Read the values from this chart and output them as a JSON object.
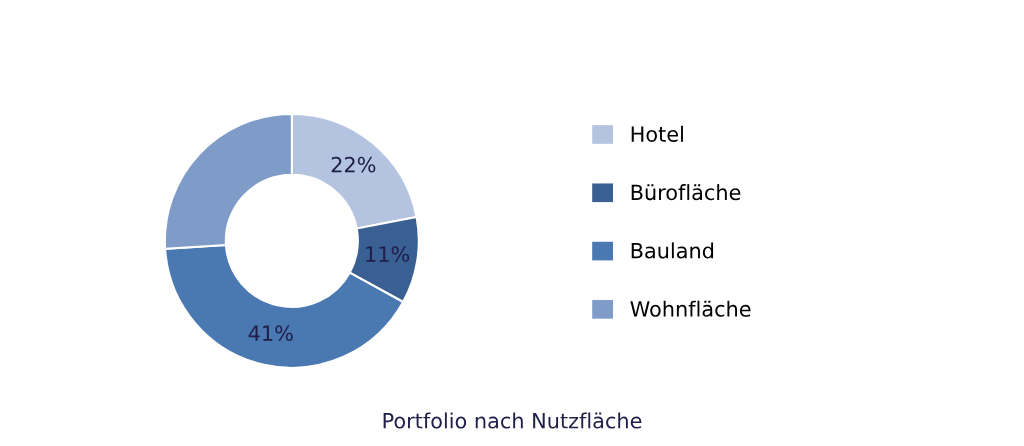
{
  "chart_data": {
    "type": "donut",
    "title": "Portfolio nach Nutzfläche",
    "categories": [
      "Hotel",
      "Bürofläche",
      "Bauland",
      "Wohnfläche"
    ],
    "values": [
      22,
      11,
      41,
      26
    ],
    "value_labels": [
      "22%",
      "11%",
      "41%",
      null
    ],
    "colors": [
      "#b4c3e0",
      "#3a5f93",
      "#4a78b0",
      "#7f9cc8"
    ],
    "legend": "right"
  }
}
